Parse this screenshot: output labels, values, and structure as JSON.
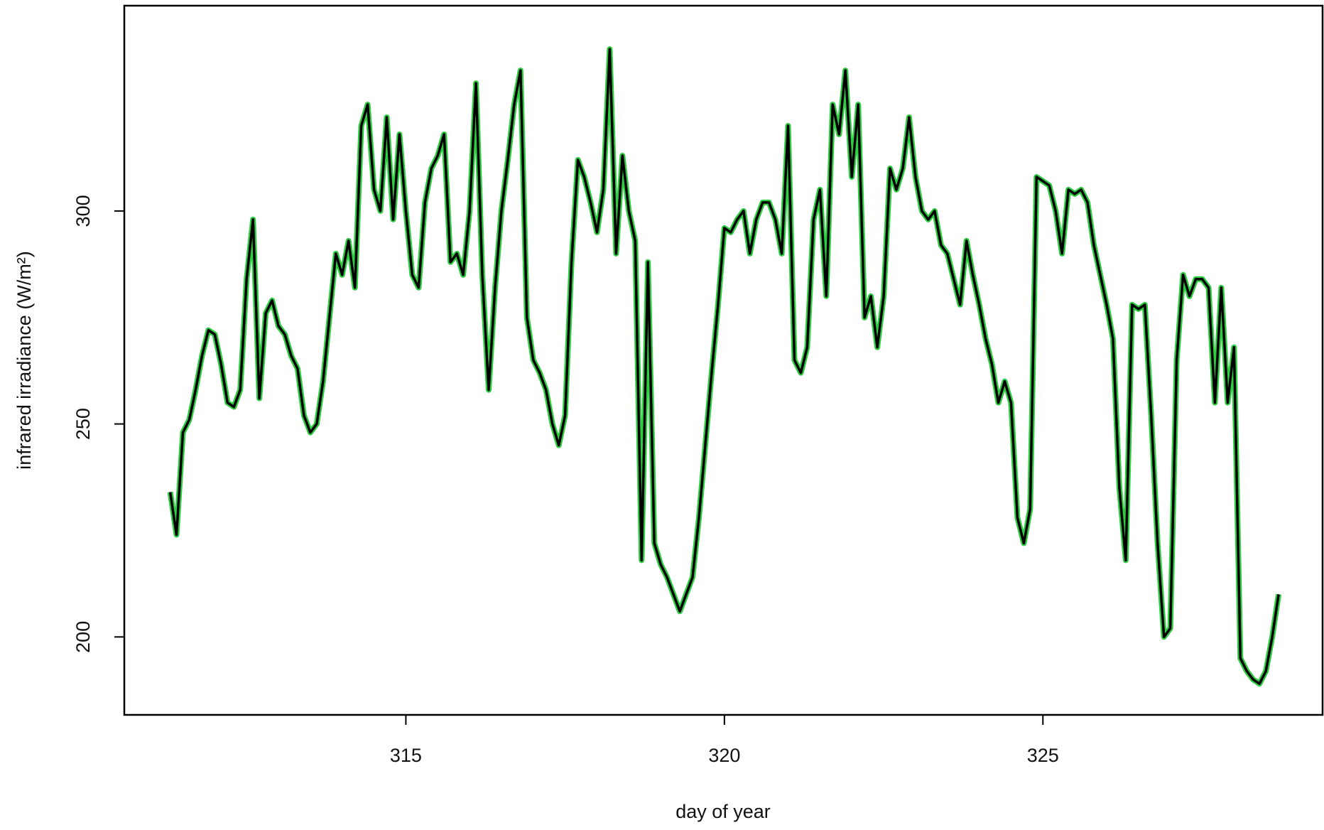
{
  "chart_data": {
    "type": "line",
    "x_label": "day of year",
    "y_label": "infrared irradiance (W/m²)",
    "xlim": [
      310.58,
      329.39
    ],
    "ylim": [
      181.7,
      348.2
    ],
    "xticks": [
      315,
      320,
      325
    ],
    "yticks": [
      200,
      250,
      300
    ],
    "color": "#000000",
    "halo_color": "#2ecc40",
    "x": [
      311.3,
      311.4,
      311.5,
      311.6,
      311.7,
      311.8,
      311.9,
      312.0,
      312.1,
      312.2,
      312.3,
      312.4,
      312.5,
      312.6,
      312.7,
      312.8,
      312.9,
      313.0,
      313.1,
      313.2,
      313.3,
      313.4,
      313.5,
      313.6,
      313.7,
      313.8,
      313.9,
      314.0,
      314.1,
      314.2,
      314.3,
      314.4,
      314.5,
      314.6,
      314.7,
      314.8,
      314.9,
      315.0,
      315.1,
      315.2,
      315.3,
      315.4,
      315.5,
      315.6,
      315.7,
      315.8,
      315.9,
      316.0,
      316.1,
      316.2,
      316.3,
      316.4,
      316.5,
      316.6,
      316.7,
      316.8,
      316.9,
      317.0,
      317.1,
      317.2,
      317.3,
      317.4,
      317.5,
      317.6,
      317.7,
      317.8,
      317.9,
      318.0,
      318.1,
      318.2,
      318.3,
      318.4,
      318.5,
      318.6,
      318.7,
      318.8,
      318.9,
      319.0,
      319.1,
      319.2,
      319.3,
      319.4,
      319.5,
      319.6,
      319.7,
      319.8,
      319.9,
      320.0,
      320.1,
      320.2,
      320.3,
      320.4,
      320.5,
      320.6,
      320.7,
      320.8,
      320.9,
      321.0,
      321.1,
      321.2,
      321.3,
      321.4,
      321.5,
      321.6,
      321.7,
      321.8,
      321.9,
      322.0,
      322.1,
      322.2,
      322.3,
      322.4,
      322.5,
      322.6,
      322.7,
      322.8,
      322.9,
      323.0,
      323.1,
      323.2,
      323.3,
      323.4,
      323.5,
      323.6,
      323.7,
      323.8,
      323.9,
      324.0,
      324.1,
      324.2,
      324.3,
      324.4,
      324.5,
      324.6,
      324.7,
      324.8,
      324.9,
      325.0,
      325.1,
      325.2,
      325.3,
      325.4,
      325.5,
      325.6,
      325.7,
      325.8,
      325.9,
      326.0,
      326.1,
      326.2,
      326.3,
      326.4,
      326.5,
      326.6,
      326.7,
      326.8,
      326.9,
      327.0,
      327.1,
      327.2,
      327.3,
      327.4,
      327.5,
      327.6,
      327.7,
      327.8,
      327.9,
      328.0,
      328.1,
      328.2,
      328.3,
      328.4,
      328.5,
      328.6,
      328.7
    ],
    "values": [
      234,
      224,
      248,
      251,
      258,
      266,
      272,
      271,
      264,
      255,
      254,
      258,
      284,
      298,
      256,
      276,
      279,
      273,
      271,
      266,
      263,
      252,
      248,
      250,
      260,
      275,
      290,
      285,
      293,
      282,
      320,
      325,
      305,
      300,
      322,
      298,
      318,
      300,
      285,
      282,
      302,
      310,
      313,
      318,
      288,
      290,
      285,
      300,
      330,
      285,
      258,
      282,
      300,
      312,
      325,
      333,
      275,
      265,
      262,
      258,
      250,
      245,
      252,
      288,
      312,
      308,
      302,
      295,
      305,
      338,
      290,
      313,
      300,
      293,
      218,
      288,
      222,
      217,
      214,
      210,
      206,
      210,
      214,
      228,
      245,
      262,
      278,
      296,
      295,
      298,
      300,
      290,
      298,
      302,
      302,
      298,
      290,
      320,
      265,
      262,
      268,
      298,
      305,
      280,
      325,
      318,
      333,
      308,
      325,
      275,
      280,
      268,
      280,
      310,
      305,
      310,
      322,
      308,
      300,
      298,
      300,
      292,
      290,
      284,
      278,
      293,
      285,
      278,
      270,
      264,
      255,
      260,
      255,
      228,
      222,
      230,
      308,
      307,
      306,
      300,
      290,
      305,
      304,
      305,
      302,
      292,
      285,
      278,
      270,
      235,
      218,
      278,
      277,
      278,
      252,
      222,
      200,
      202,
      265,
      285,
      280,
      284,
      284,
      282,
      255,
      282,
      255,
      268,
      195,
      192,
      190,
      189,
      192,
      200,
      210
    ]
  }
}
